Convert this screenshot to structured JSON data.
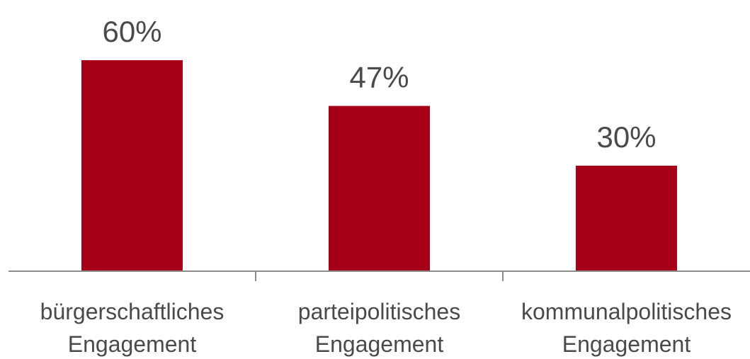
{
  "chart_data": {
    "type": "bar",
    "categories": [
      [
        "bürgerschaftliches",
        "Engagement"
      ],
      [
        "parteipolitisches",
        "Engagement"
      ],
      [
        "kommunalpolitisches",
        "Engagement"
      ]
    ],
    "values": [
      60,
      47,
      30
    ],
    "value_labels": [
      "60%",
      "47%",
      "30%"
    ],
    "title": "",
    "xlabel": "",
    "ylabel": "",
    "ylim": [
      0,
      60
    ],
    "grid": false,
    "legend": "none",
    "colors": {
      "bar": "#a50018",
      "axis": "#8c8c8c",
      "text": "#4a4a4a"
    }
  }
}
